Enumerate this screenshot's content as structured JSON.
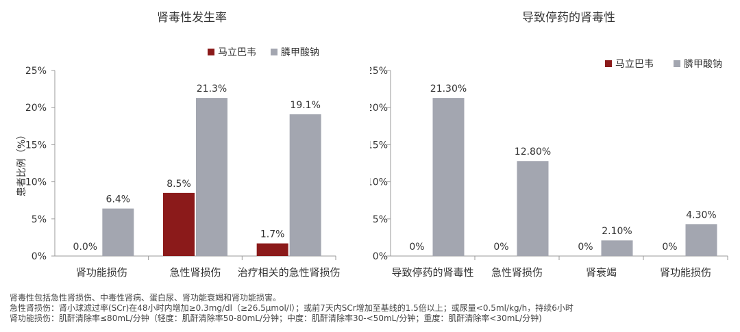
{
  "colors": {
    "series1": "#8b1a1a",
    "series2": "#a3a6b0",
    "axis": "#999999",
    "text": "#333333"
  },
  "chart_data": [
    {
      "type": "bar",
      "title": "肾毒性发生率",
      "ylabel": "患者比例（%）",
      "xlabel": "",
      "categories": [
        "肾功能损伤",
        "急性肾损伤",
        "治疗相关的急性肾损伤"
      ],
      "series": [
        {
          "name": "马立巴韦",
          "values": [
            0.0,
            8.5,
            1.7
          ],
          "labels": [
            "0.0%",
            "8.5%",
            "1.7%"
          ]
        },
        {
          "name": "膦甲酸钠",
          "values": [
            6.4,
            21.3,
            19.1
          ],
          "labels": [
            "6.4%",
            "21.3%",
            "19.1%"
          ]
        }
      ],
      "ylim": [
        0,
        25
      ],
      "yticks": [
        "0%",
        "5%",
        "10%",
        "15%",
        "20%",
        "25%"
      ],
      "legend": "top-right",
      "grid": false
    },
    {
      "type": "bar",
      "title": "导致停药的肾毒性",
      "ylabel": "",
      "xlabel": "",
      "categories": [
        "导致停药的肾毒性",
        "急性肾损伤",
        "肾衰竭",
        "肾功能损伤"
      ],
      "series": [
        {
          "name": "马立巴韦",
          "values": [
            0,
            0,
            0,
            0
          ],
          "labels": [
            "0%",
            "0%",
            "0%",
            "0%"
          ]
        },
        {
          "name": "膦甲酸钠",
          "values": [
            21.3,
            12.8,
            2.1,
            4.3
          ],
          "labels": [
            "21.30%",
            "12.80%",
            "2.10%",
            "4.30%"
          ]
        }
      ],
      "ylim": [
        0,
        25
      ],
      "yticks": [
        "0%",
        "5%",
        "10%",
        "15%",
        "20%",
        "25%"
      ],
      "legend": "top-right",
      "grid": false
    }
  ],
  "footnotes": [
    "肾毒性包括急性肾损伤、中毒性肾病、蛋白尿、肾功能衰竭和肾功能损害。",
    "急性肾损伤：肾小球滤过率(SCr)在48小时内增加≥0.3mg/dl（≥26.5μmol/l）；或前7天内SCr增加至基线的1.5倍以上；或尿量<0.5ml/kg/h，持续6小时",
    "肾功能损伤：肌酐清除率≤80mL/分钟（轻度：肌酐清除率50-80mL/分钟；中度：肌酐清除率30-<50mL/分钟；重度：肌酐清除率<30mL/分钟)"
  ]
}
